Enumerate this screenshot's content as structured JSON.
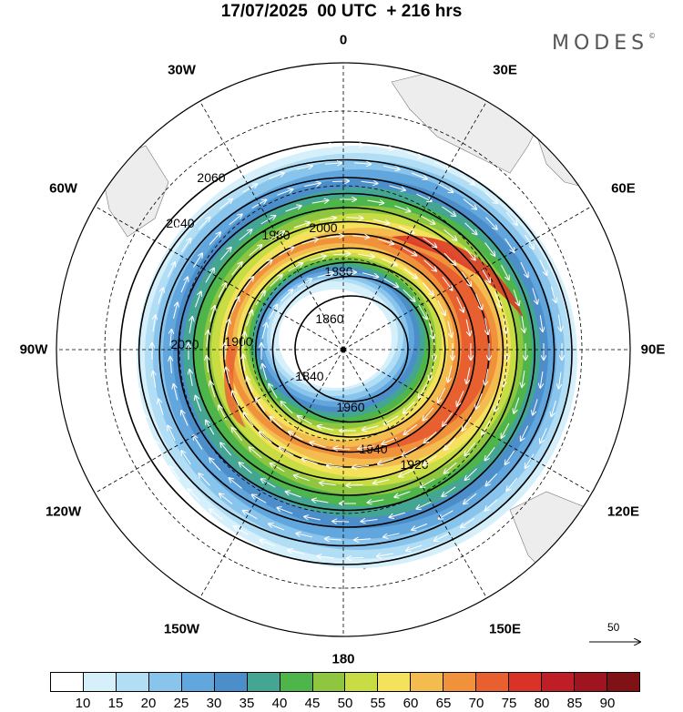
{
  "header": {
    "title": "17/07/2025  00 UTC  + 216 hrs",
    "brand": "MODES",
    "brand_mark": "©"
  },
  "map": {
    "projection": "south polar stereographic",
    "center": "South Pole",
    "longitude_labels": [
      "0",
      "30E",
      "60E",
      "90E",
      "120E",
      "150E",
      "180",
      "150W",
      "120W",
      "90W",
      "60W",
      "30W"
    ],
    "contour_labels": [
      "2060",
      "2040",
      "2020",
      "2000",
      "1980",
      "1960",
      "1940",
      "1920",
      "1900",
      "1880",
      "1860",
      "1840"
    ],
    "reference_vector": "50"
  },
  "colorbar": {
    "labels": [
      "10",
      "15",
      "20",
      "25",
      "30",
      "35",
      "40",
      "45",
      "50",
      "55",
      "60",
      "65",
      "70",
      "75",
      "80",
      "85",
      "90"
    ],
    "colors": [
      "#ffffff",
      "#d5f0fb",
      "#b1def5",
      "#88c4ec",
      "#62a6de",
      "#4b8ec9",
      "#44a593",
      "#4eb54a",
      "#8ec63f",
      "#c8dc44",
      "#f5e25c",
      "#f4bb4f",
      "#f0913c",
      "#e86030",
      "#d93226",
      "#c01e27",
      "#9e1520",
      "#7e1214"
    ]
  },
  "colors": {
    "land": "#ededed",
    "grid": "#000000"
  }
}
